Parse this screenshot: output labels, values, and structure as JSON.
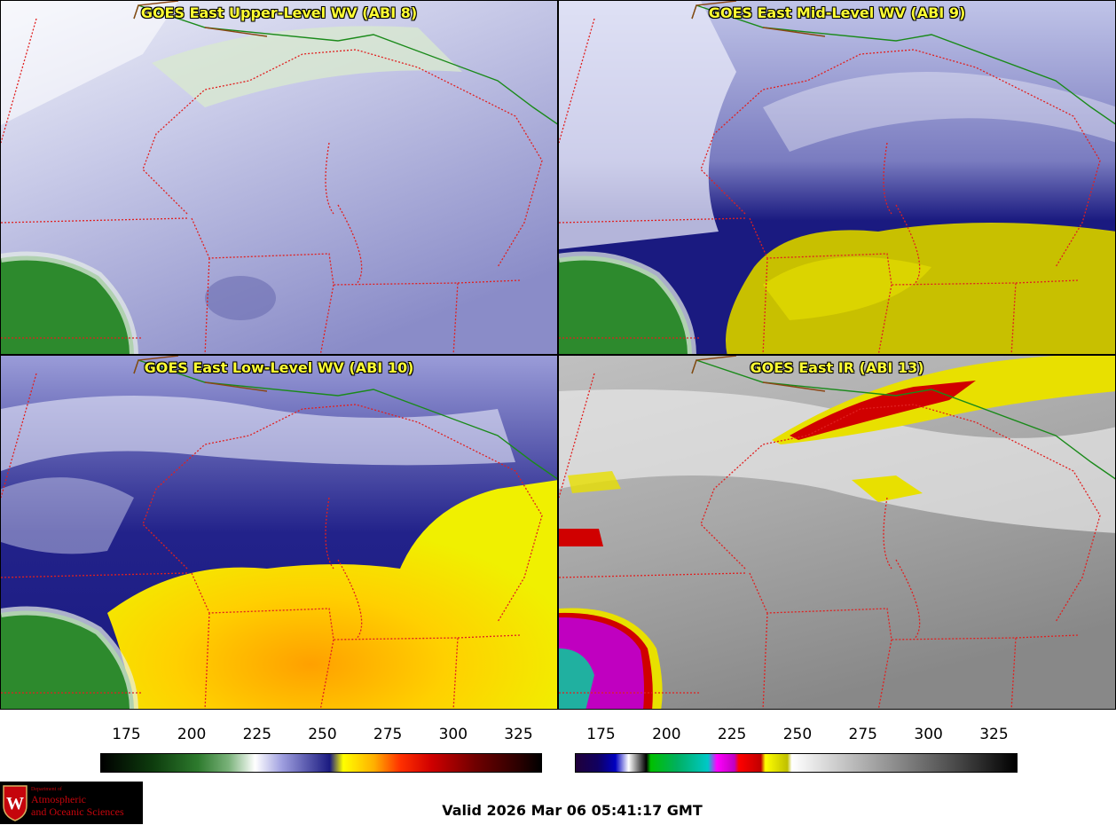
{
  "panels": [
    {
      "title": "GOES East Upper-Level WV (ABI 8)",
      "product": "wv"
    },
    {
      "title": "GOES East Mid-Level WV (ABI 9)",
      "product": "wv"
    },
    {
      "title": "GOES East Low-Level WV (ABI 10)",
      "product": "wv"
    },
    {
      "title": "GOES East IR (ABI 13)",
      "product": "ir"
    }
  ],
  "colorbars": {
    "wv": {
      "ticks": [
        "175",
        "200",
        "225",
        "250",
        "275",
        "300",
        "325"
      ],
      "range": [
        165,
        334
      ]
    },
    "ir": {
      "ticks": [
        "175",
        "200",
        "225",
        "250",
        "275",
        "300",
        "325"
      ],
      "range": [
        165,
        334
      ]
    }
  },
  "valid_time": "Valid 2026 Mar 06 05:41:17 GMT",
  "logo": {
    "department": "Department of",
    "name_line1": "Atmospheric",
    "name_line2": "and Oceanic Sciences",
    "crest_letter": "W"
  },
  "colors": {
    "state_borders": "#e02020",
    "national_border": "#1a8a1a",
    "coastline": "#8b4513",
    "title_text": "#ffff33",
    "logo_text": "#c5050c"
  }
}
